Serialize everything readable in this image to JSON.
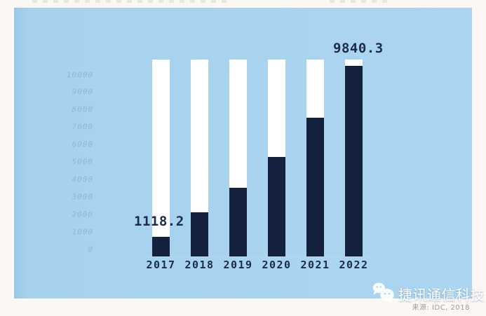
{
  "colors": {
    "page_background": "#fcf7f4",
    "panel_background": "#abd5f0",
    "panel_edge": "#99c8e6",
    "bar": "#13213e",
    "bar_track": "#ffffff",
    "axis_line": "#bfd6e7",
    "y_tick_text": "#8fb7d6",
    "x_tick_text": "#1c2b4a",
    "data_label_text": "#1c2b4a",
    "brand_text": "#ffffff",
    "source_text": "#9e9e9e"
  },
  "chart_data": {
    "type": "bar",
    "title": "",
    "categories": [
      "2017",
      "2018",
      "2019",
      "2020",
      "2021",
      "2022"
    ],
    "values": [
      1118.2,
      2500,
      3950,
      5700,
      7950,
      9840.3
    ],
    "y_ticks": [
      10000,
      9000,
      8000,
      7000,
      6000,
      5000,
      4000,
      3000,
      2000,
      1000,
      0
    ],
    "ylim": [
      0,
      10000
    ],
    "grid": false,
    "legend": false,
    "data_labels": [
      {
        "category": "2017",
        "text": "1118.2"
      },
      {
        "category": "2022",
        "text": "9840.3"
      }
    ],
    "bar_fill_fractions": [
      0.1,
      0.224,
      0.349,
      0.505,
      0.705,
      0.968
    ],
    "bar_color": "#13213e",
    "track_color": "#ffffff"
  },
  "watermark": {
    "icon": "wechat-icon",
    "brand": "捷讯通信科技",
    "source": "来源: IDC, 2018"
  }
}
